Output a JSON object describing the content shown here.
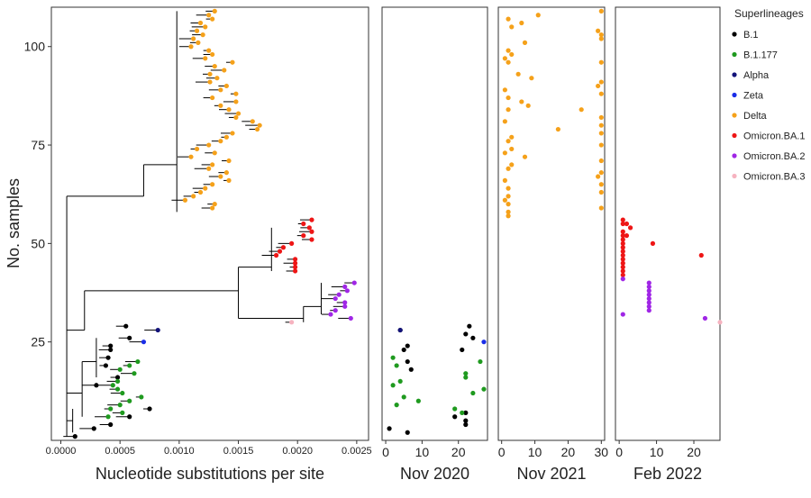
{
  "colors": {
    "B.1": "#000000",
    "B.1.177": "#1f9a1f",
    "Alpha": "#13137a",
    "Zeta": "#1a2de8",
    "Delta": "#f5a11a",
    "Omicron.BA.1": "#ee1616",
    "Omicron.BA.2": "#a026e6",
    "Omicron.BA.3": "#f6b3c0"
  },
  "legend": {
    "title": "Superlineages",
    "items": [
      "B.1",
      "B.1.177",
      "Alpha",
      "Zeta",
      "Delta",
      "Omicron.BA.1",
      "Omicron.BA.2",
      "Omicron.BA.3"
    ]
  },
  "chart_data": [
    {
      "type": "scatter",
      "title": "",
      "xlabel": "Nucleotide substitutions per site",
      "ylabel": "No. samples",
      "xlim": [
        -8e-05,
        0.0026
      ],
      "ylim": [
        0,
        110
      ],
      "x_ticks": [
        "0.0000",
        "0.0005",
        "0.0010",
        "0.0015",
        "0.0020",
        "0.0025"
      ],
      "y_ticks": [
        "25",
        "50",
        "75",
        "100"
      ],
      "description_type": "phylogenetic tree; tip positions (x = divergence, y = sample index)",
      "series": [
        {
          "name": "Delta",
          "points": [
            [
              0.0013,
              109
            ],
            [
              0.00125,
              108
            ],
            [
              0.00128,
              107
            ],
            [
              0.00118,
              106
            ],
            [
              0.00122,
              105
            ],
            [
              0.00115,
              104
            ],
            [
              0.0012,
              103
            ],
            [
              0.00112,
              102
            ],
            [
              0.00116,
              101
            ],
            [
              0.0011,
              100
            ],
            [
              0.00125,
              99
            ],
            [
              0.00128,
              98
            ],
            [
              0.00122,
              97
            ],
            [
              0.00145,
              96
            ],
            [
              0.0013,
              95
            ],
            [
              0.00138,
              94
            ],
            [
              0.00126,
              93
            ],
            [
              0.00132,
              92
            ],
            [
              0.00126,
              91
            ],
            [
              0.0014,
              90
            ],
            [
              0.00135,
              89
            ],
            [
              0.00148,
              88
            ],
            [
              0.00128,
              87
            ],
            [
              0.00148,
              86
            ],
            [
              0.00135,
              85
            ],
            [
              0.00142,
              84
            ],
            [
              0.0015,
              83
            ],
            [
              0.00148,
              82
            ],
            [
              0.00162,
              81
            ],
            [
              0.00168,
              80
            ],
            [
              0.00166,
              79
            ],
            [
              0.00145,
              78
            ],
            [
              0.0014,
              77
            ],
            [
              0.00135,
              76
            ],
            [
              0.00125,
              75
            ],
            [
              0.00115,
              74
            ],
            [
              0.0013,
              73
            ],
            [
              0.0011,
              72
            ],
            [
              0.00142,
              71
            ],
            [
              0.00128,
              70
            ],
            [
              0.00125,
              69
            ],
            [
              0.0014,
              68
            ],
            [
              0.00135,
              67
            ],
            [
              0.00142,
              66
            ],
            [
              0.00128,
              65
            ],
            [
              0.00122,
              64
            ],
            [
              0.00118,
              63
            ],
            [
              0.00112,
              62
            ],
            [
              0.00105,
              61
            ],
            [
              0.0013,
              60
            ],
            [
              0.00128,
              59
            ]
          ]
        },
        {
          "name": "Omicron.BA.1",
          "points": [
            [
              0.00212,
              56
            ],
            [
              0.00205,
              55
            ],
            [
              0.0021,
              54
            ],
            [
              0.00212,
              53
            ],
            [
              0.00205,
              52
            ],
            [
              0.00212,
              51
            ],
            [
              0.00195,
              50
            ],
            [
              0.00188,
              49
            ],
            [
              0.00185,
              48
            ],
            [
              0.00182,
              47
            ],
            [
              0.00198,
              46
            ],
            [
              0.00198,
              45
            ],
            [
              0.00198,
              44
            ],
            [
              0.00198,
              43
            ]
          ]
        },
        {
          "name": "Omicron.BA.2",
          "points": [
            [
              0.00248,
              40
            ],
            [
              0.0024,
              39
            ],
            [
              0.00242,
              38
            ],
            [
              0.00235,
              37
            ],
            [
              0.00232,
              36
            ],
            [
              0.0024,
              35
            ],
            [
              0.0024,
              34
            ],
            [
              0.00232,
              33
            ],
            [
              0.00228,
              32
            ],
            [
              0.00245,
              31
            ]
          ]
        },
        {
          "name": "Omicron.BA.3",
          "points": [
            [
              0.00195,
              30
            ]
          ]
        },
        {
          "name": "Alpha",
          "points": [
            [
              0.00082,
              28
            ]
          ]
        },
        {
          "name": "B.1",
          "points": [
            [
              0.00055,
              29
            ],
            [
              0.00058,
              26
            ],
            [
              0.00042,
              24
            ],
            [
              0.00042,
              23
            ],
            [
              0.0004,
              21
            ],
            [
              0.00038,
              19
            ],
            [
              0.00048,
              16
            ],
            [
              0.0003,
              14
            ],
            [
              0.00075,
              8
            ],
            [
              0.00058,
              6
            ],
            [
              0.00042,
              4
            ],
            [
              0.00028,
              3
            ],
            [
              0.00012,
              1
            ]
          ]
        },
        {
          "name": "Zeta",
          "points": [
            [
              0.0007,
              25
            ]
          ]
        },
        {
          "name": "B.1.177",
          "points": [
            [
              0.00065,
              20
            ],
            [
              0.00058,
              19
            ],
            [
              0.0005,
              18
            ],
            [
              0.00062,
              17
            ],
            [
              0.00048,
              15
            ],
            [
              0.00044,
              14
            ],
            [
              0.00048,
              13
            ],
            [
              0.00052,
              12
            ],
            [
              0.00068,
              11
            ],
            [
              0.00058,
              10
            ],
            [
              0.0005,
              9
            ],
            [
              0.00042,
              8
            ],
            [
              0.00052,
              7
            ],
            [
              0.0004,
              6
            ]
          ]
        }
      ]
    },
    {
      "type": "scatter",
      "title": "",
      "xlabel": "Nov 2020",
      "ylabel": "",
      "xlim": [
        -1,
        28
      ],
      "ylim": [
        0,
        110
      ],
      "x_ticks": [
        "0",
        "10",
        "20"
      ],
      "series": [
        {
          "name": "B.1",
          "points": [
            [
              4,
              28
            ],
            [
              23,
              29
            ],
            [
              22,
              27
            ],
            [
              24,
              26
            ],
            [
              6,
              24
            ],
            [
              5,
              23
            ],
            [
              21,
              23
            ],
            [
              6,
              20
            ],
            [
              7,
              18
            ],
            [
              19,
              6
            ],
            [
              22,
              7
            ],
            [
              22,
              5
            ],
            [
              22,
              4
            ],
            [
              1,
              3
            ],
            [
              6,
              2
            ]
          ]
        },
        {
          "name": "Alpha",
          "points": [
            [
              4,
              28
            ]
          ]
        },
        {
          "name": "Zeta",
          "points": [
            [
              27,
              25
            ]
          ]
        },
        {
          "name": "B.1.177",
          "points": [
            [
              2,
              21
            ],
            [
              3,
              19
            ],
            [
              26,
              20
            ],
            [
              22,
              17
            ],
            [
              22,
              16
            ],
            [
              4,
              15
            ],
            [
              2,
              14
            ],
            [
              27,
              13
            ],
            [
              24,
              12
            ],
            [
              5,
              11
            ],
            [
              9,
              10
            ],
            [
              19,
              8
            ],
            [
              3,
              9
            ],
            [
              21,
              7
            ]
          ]
        }
      ]
    },
    {
      "type": "scatter",
      "title": "",
      "xlabel": "Nov 2021",
      "ylabel": "",
      "xlim": [
        -1,
        31
      ],
      "ylim": [
        0,
        110
      ],
      "x_ticks": [
        "0",
        "10",
        "20",
        "30"
      ],
      "series": [
        {
          "name": "Delta",
          "points": [
            [
              11,
              108
            ],
            [
              30,
              109
            ],
            [
              2,
              107
            ],
            [
              6,
              106
            ],
            [
              3,
              105
            ],
            [
              29,
              104
            ],
            [
              30,
              103
            ],
            [
              30,
              102
            ],
            [
              7,
              101
            ],
            [
              2,
              99
            ],
            [
              3,
              98
            ],
            [
              1,
              97
            ],
            [
              2,
              96
            ],
            [
              30,
              96
            ],
            [
              5,
              93
            ],
            [
              9,
              92
            ],
            [
              30,
              91
            ],
            [
              29,
              90
            ],
            [
              1,
              89
            ],
            [
              30,
              88
            ],
            [
              2,
              87
            ],
            [
              6,
              86
            ],
            [
              8,
              85
            ],
            [
              2,
              84
            ],
            [
              24,
              84
            ],
            [
              30,
              82
            ],
            [
              1,
              81
            ],
            [
              30,
              80
            ],
            [
              17,
              79
            ],
            [
              30,
              78
            ],
            [
              3,
              77
            ],
            [
              2,
              76
            ],
            [
              30,
              75
            ],
            [
              3,
              74
            ],
            [
              1,
              73
            ],
            [
              7,
              72
            ],
            [
              30,
              71
            ],
            [
              3,
              70
            ],
            [
              2,
              69
            ],
            [
              30,
              68
            ],
            [
              29,
              67
            ],
            [
              1,
              66
            ],
            [
              30,
              65
            ],
            [
              2,
              64
            ],
            [
              30,
              63
            ],
            [
              2,
              62
            ],
            [
              1,
              61
            ],
            [
              2,
              60
            ],
            [
              30,
              59
            ],
            [
              2,
              58
            ],
            [
              2,
              57
            ]
          ]
        }
      ]
    },
    {
      "type": "scatter",
      "title": "",
      "xlabel": "Feb 2022",
      "ylabel": "",
      "xlim": [
        -1,
        27
      ],
      "ylim": [
        0,
        110
      ],
      "x_ticks": [
        "0",
        "10",
        "20"
      ],
      "series": [
        {
          "name": "Omicron.BA.1",
          "points": [
            [
              1,
              56
            ],
            [
              1,
              55
            ],
            [
              2,
              55
            ],
            [
              3,
              54
            ],
            [
              1,
              53
            ],
            [
              1,
              52
            ],
            [
              2,
              52
            ],
            [
              1,
              51
            ],
            [
              1,
              50
            ],
            [
              9,
              50
            ],
            [
              1,
              49
            ],
            [
              1,
              48
            ],
            [
              1,
              47
            ],
            [
              22,
              47
            ],
            [
              1,
              46
            ],
            [
              1,
              45
            ],
            [
              1,
              44
            ],
            [
              1,
              43
            ],
            [
              1,
              42
            ]
          ]
        },
        {
          "name": "Omicron.BA.2",
          "points": [
            [
              1,
              41
            ],
            [
              8,
              40
            ],
            [
              8,
              39
            ],
            [
              8,
              38
            ],
            [
              8,
              37
            ],
            [
              8,
              36
            ],
            [
              8,
              35
            ],
            [
              8,
              34
            ],
            [
              8,
              33
            ],
            [
              1,
              32
            ],
            [
              23,
              31
            ]
          ]
        },
        {
          "name": "Omicron.BA.3",
          "points": [
            [
              27,
              30
            ]
          ]
        }
      ]
    }
  ]
}
